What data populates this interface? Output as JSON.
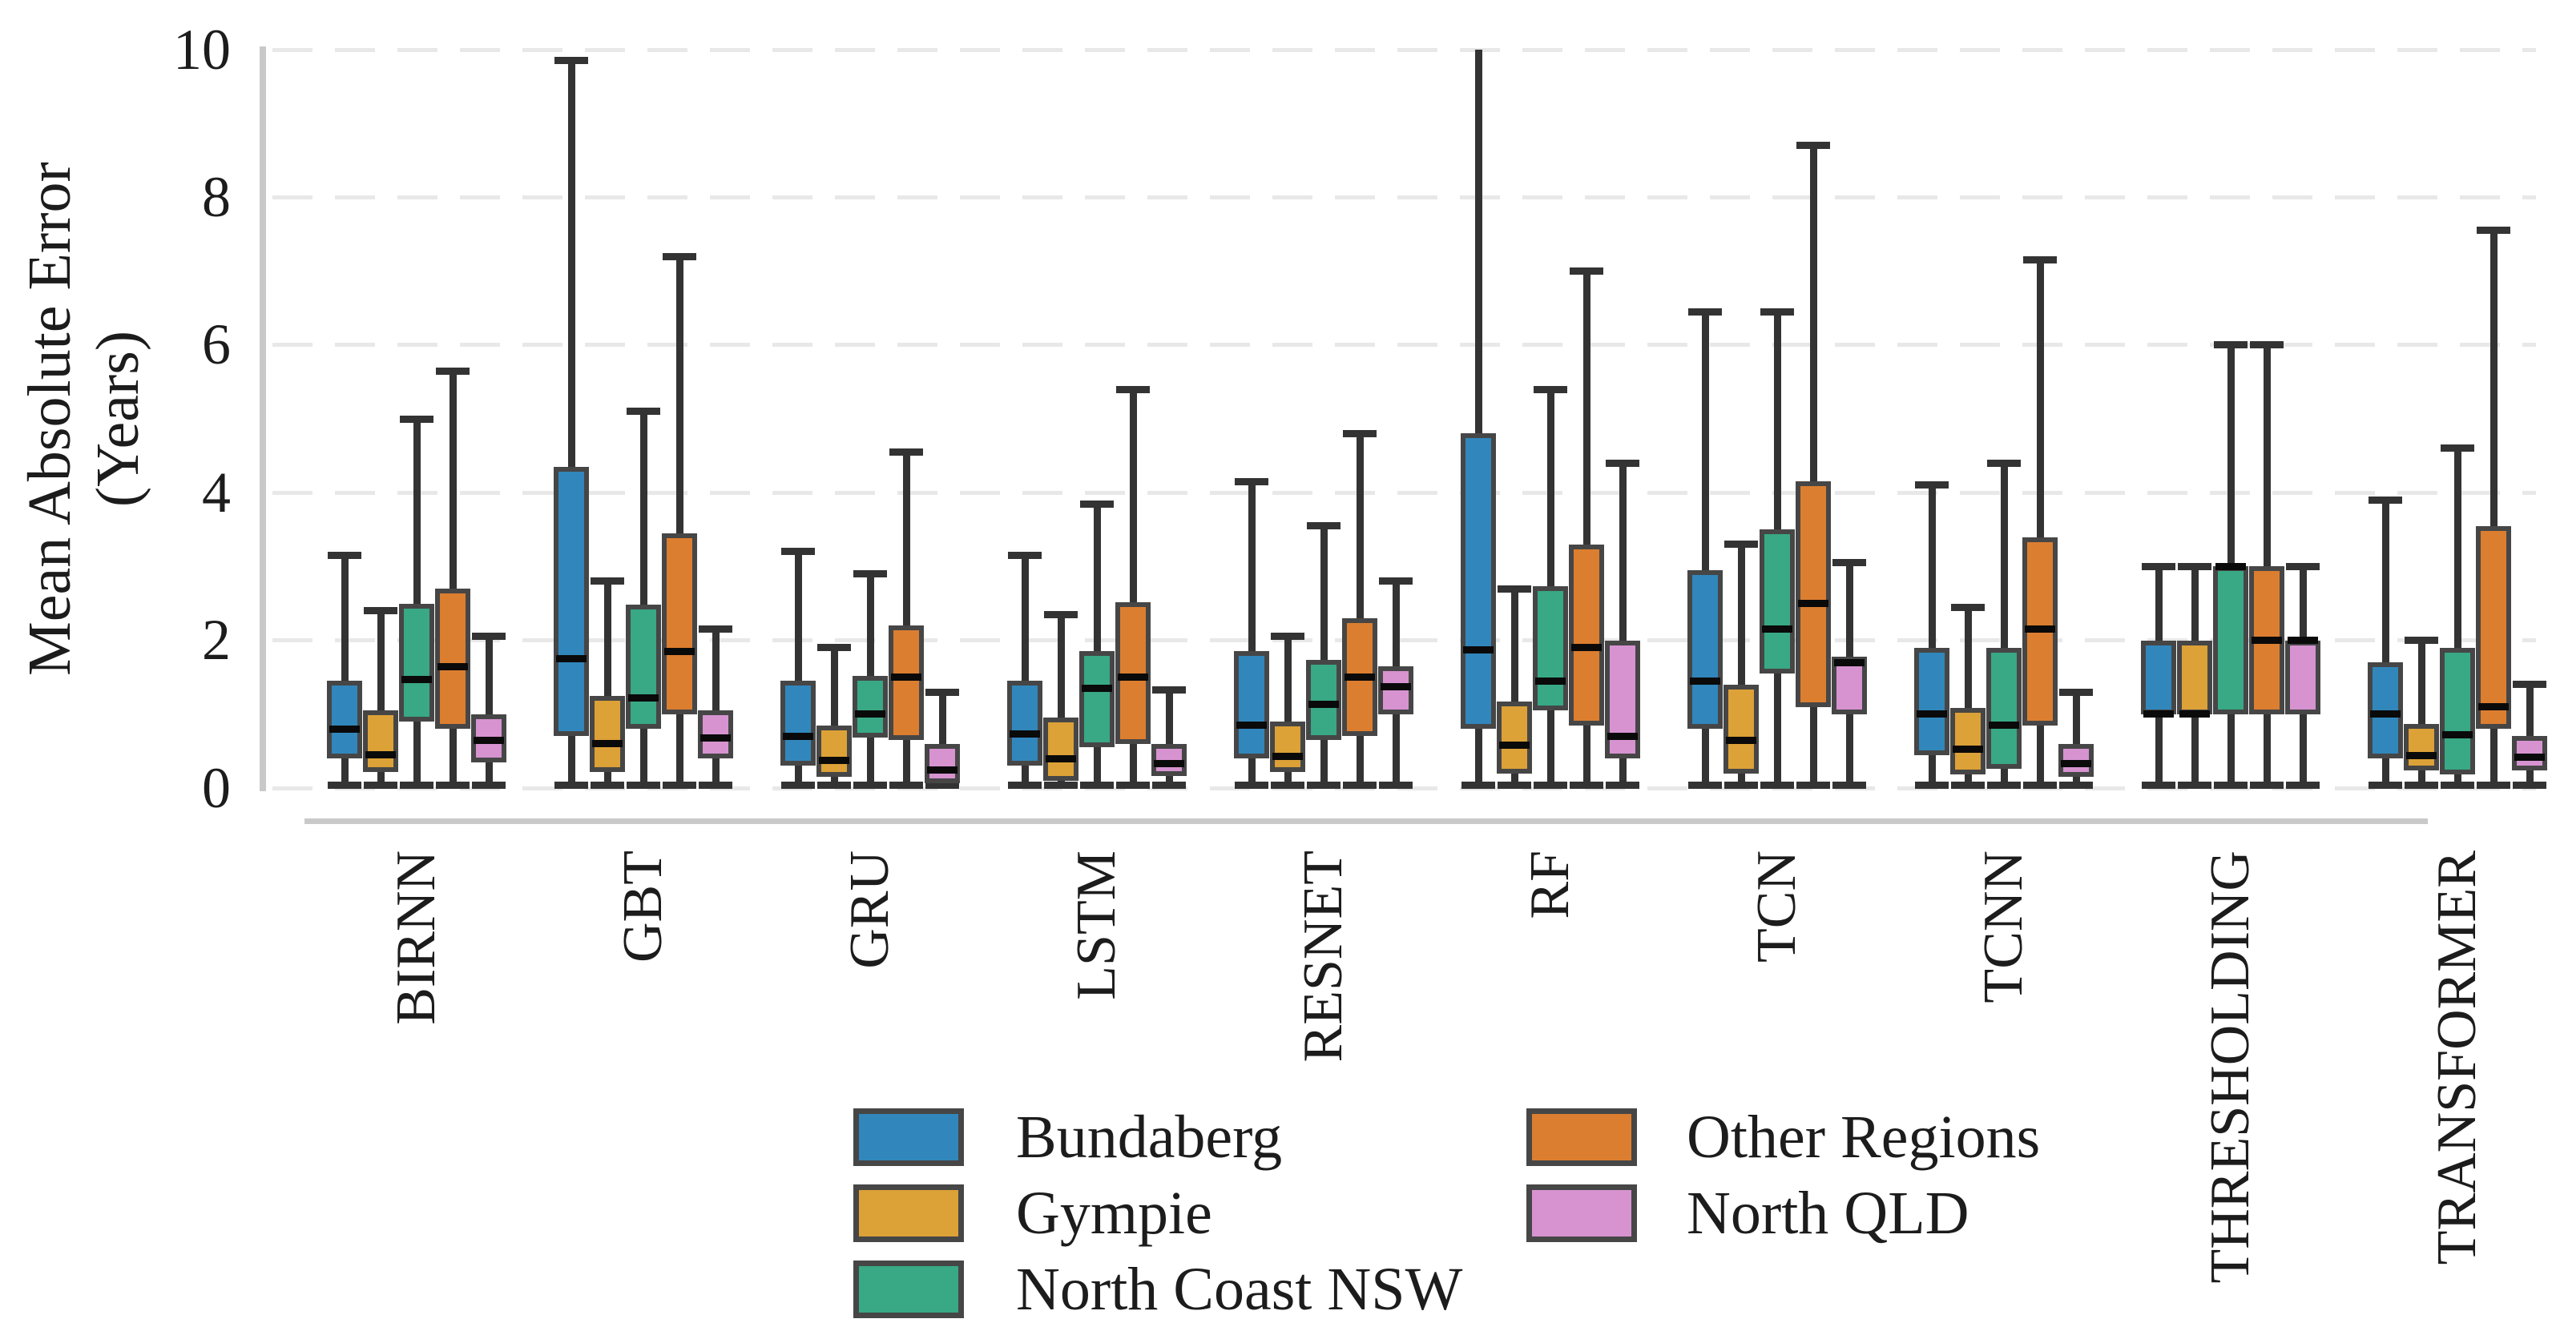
{
  "chart_data": {
    "type": "boxplot",
    "title": "",
    "ylabel": "Mean Absolute Error\n(Years)",
    "xlabel": "",
    "ylim": [
      0,
      10
    ],
    "yticks": [
      0,
      2,
      4,
      6,
      8,
      10
    ],
    "grid": "horizontal-dashed",
    "legend_position": "bottom-center",
    "categories": [
      "BIRNN",
      "GBT",
      "GRU",
      "LSTM",
      "RESNET",
      "RF",
      "TCN",
      "TCNN",
      "THRESHOLDING",
      "TRANSFORMER"
    ],
    "box_value_order": [
      "whisker_low",
      "q1",
      "median",
      "q3",
      "whisker_high"
    ],
    "series": [
      {
        "name": "Bundaberg",
        "color": "#3187bc",
        "boxes": [
          [
            0,
            0.4,
            0.8,
            1.45,
            3.15
          ],
          [
            0,
            0.7,
            1.75,
            4.35,
            9.85
          ],
          [
            0,
            0.3,
            0.7,
            1.45,
            3.2
          ],
          [
            0,
            0.3,
            0.73,
            1.45,
            3.15
          ],
          [
            0,
            0.4,
            0.85,
            1.85,
            4.15
          ],
          [
            0,
            0.8,
            1.87,
            4.8,
            10.0
          ],
          [
            0,
            0.8,
            1.45,
            2.95,
            6.45
          ],
          [
            0,
            0.45,
            1.0,
            1.9,
            4.1
          ],
          [
            0,
            1.0,
            1.0,
            2.0,
            3.0
          ],
          [
            0,
            0.4,
            1.0,
            1.7,
            3.9
          ]
        ]
      },
      {
        "name": "Gympie",
        "color": "#dca137",
        "boxes": [
          [
            0,
            0.22,
            0.45,
            1.05,
            2.4
          ],
          [
            0,
            0.22,
            0.6,
            1.25,
            2.8
          ],
          [
            0,
            0.15,
            0.37,
            0.85,
            1.9
          ],
          [
            0,
            0.1,
            0.4,
            0.95,
            2.35
          ],
          [
            0,
            0.22,
            0.43,
            0.9,
            2.05
          ],
          [
            0,
            0.2,
            0.58,
            1.17,
            2.7
          ],
          [
            0,
            0.2,
            0.65,
            1.4,
            3.3
          ],
          [
            0,
            0.18,
            0.53,
            1.08,
            2.45
          ],
          [
            0,
            1.0,
            1.0,
            2.0,
            3.0
          ],
          [
            0,
            0.24,
            0.44,
            0.87,
            2.0
          ]
        ]
      },
      {
        "name": "North Coast NSW",
        "color": "#38a885",
        "boxes": [
          [
            0,
            0.9,
            1.47,
            2.5,
            5.0
          ],
          [
            0,
            0.8,
            1.22,
            2.48,
            5.1
          ],
          [
            0,
            0.68,
            1.0,
            1.52,
            2.9
          ],
          [
            0,
            0.55,
            1.35,
            1.85,
            3.85
          ],
          [
            0,
            0.65,
            1.13,
            1.73,
            3.55
          ],
          [
            0,
            1.05,
            1.45,
            2.73,
            5.4
          ],
          [
            0,
            1.55,
            2.15,
            3.5,
            6.45
          ],
          [
            0,
            0.26,
            0.85,
            1.9,
            4.4
          ],
          [
            0,
            1.0,
            3.0,
            3.0,
            6.0
          ],
          [
            0,
            0.18,
            0.72,
            1.9,
            4.6
          ]
        ]
      },
      {
        "name": "Other Regions",
        "color": "#dc7e30",
        "boxes": [
          [
            0,
            0.8,
            1.64,
            2.7,
            5.65
          ],
          [
            0,
            1.0,
            1.85,
            3.45,
            7.2
          ],
          [
            0,
            0.65,
            1.5,
            2.2,
            4.55
          ],
          [
            0,
            0.6,
            1.5,
            2.52,
            5.4
          ],
          [
            0,
            0.7,
            1.5,
            2.3,
            4.8
          ],
          [
            0,
            0.85,
            1.9,
            3.3,
            7.0
          ],
          [
            0,
            1.1,
            2.5,
            4.15,
            8.7
          ],
          [
            0,
            0.85,
            2.15,
            3.4,
            7.15
          ],
          [
            0,
            1.0,
            2.0,
            3.0,
            6.0
          ],
          [
            0,
            0.8,
            1.1,
            3.55,
            7.55
          ]
        ]
      },
      {
        "name": "North QLD",
        "color": "#d693d0",
        "boxes": [
          [
            0,
            0.35,
            0.65,
            1.0,
            2.05
          ],
          [
            0,
            0.4,
            0.68,
            1.05,
            2.15
          ],
          [
            0,
            0.07,
            0.24,
            0.6,
            1.3
          ],
          [
            0,
            0.16,
            0.33,
            0.6,
            1.33
          ],
          [
            0,
            1.0,
            1.37,
            1.65,
            2.8
          ],
          [
            0,
            0.4,
            0.7,
            2.0,
            4.4
          ],
          [
            0,
            1.0,
            1.7,
            1.78,
            3.05
          ],
          [
            0,
            0.15,
            0.33,
            0.6,
            1.3
          ],
          [
            0,
            1.0,
            2.0,
            2.0,
            3.0
          ],
          [
            0,
            0.24,
            0.42,
            0.7,
            1.4
          ]
        ]
      }
    ],
    "clipped_whiskers": [
      {
        "series": "Bundaberg",
        "category": "RF",
        "note": "upper whisker clipped at axis top, no cap",
        "value": 10.0
      }
    ]
  },
  "legend": {
    "items": [
      {
        "label": "Bundaberg",
        "color": "#3187bc"
      },
      {
        "label": "Gympie",
        "color": "#dca137"
      },
      {
        "label": "North Coast NSW",
        "color": "#38a885"
      },
      {
        "label": "Other Regions",
        "color": "#dc7e30"
      },
      {
        "label": "North QLD",
        "color": "#d693d0"
      }
    ]
  },
  "style_colors": {
    "box_edge": "#464646",
    "whisker": "#333333",
    "median": "#0a0a0a",
    "gridline": "#e8e8e8",
    "spine": "#c9c9c9",
    "text": "#1c1c1c",
    "background": "#ffffff"
  }
}
